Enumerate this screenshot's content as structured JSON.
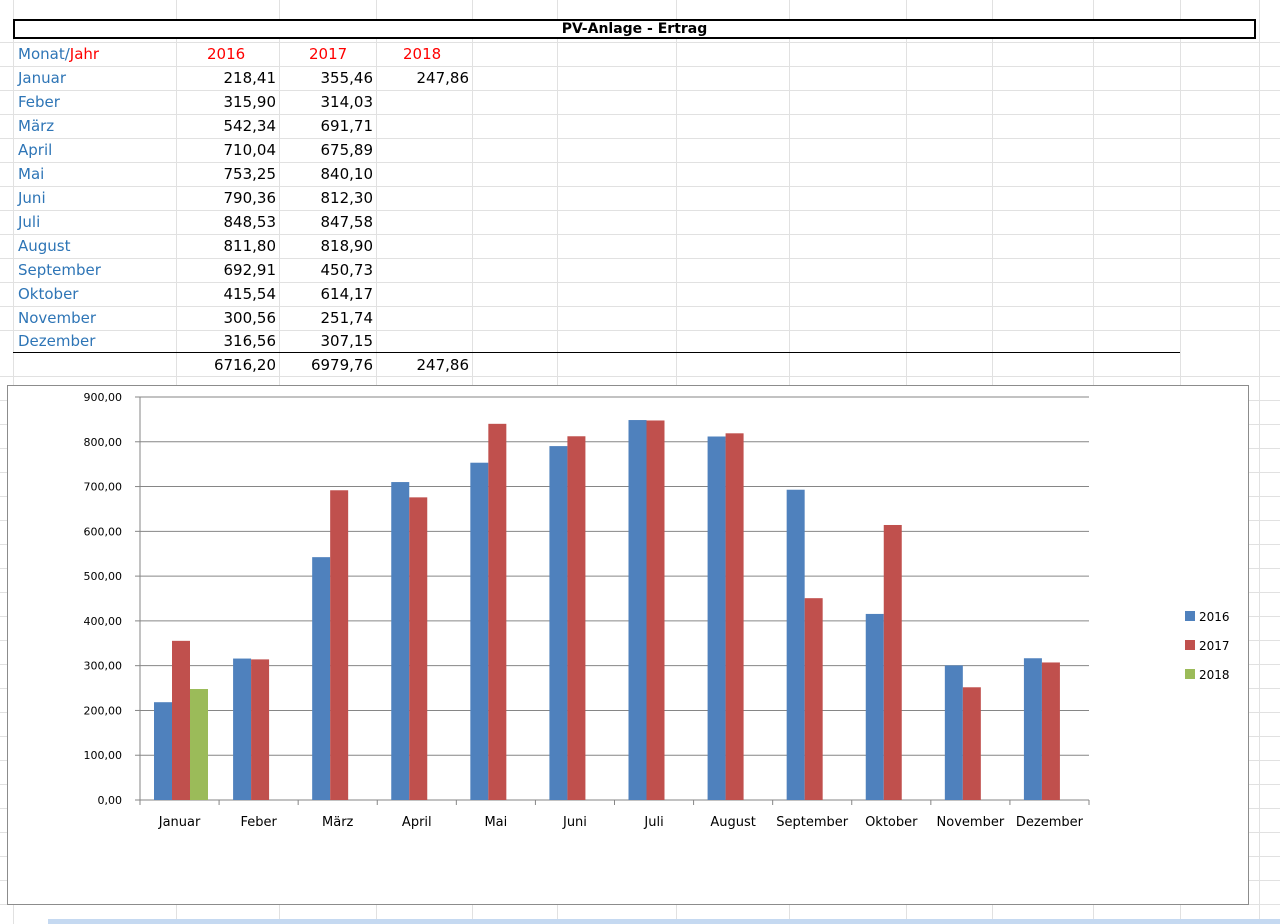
{
  "sheet": {
    "title": "PV-Anlage - Ertrag",
    "header": {
      "monat": "Monat",
      "sep": "/",
      "jahr": "Jahr",
      "years": [
        "2016",
        "2017",
        "2018"
      ]
    },
    "rows": [
      {
        "month": "Januar",
        "v2016": "218,41",
        "v2017": "355,46",
        "v2018": "247,86"
      },
      {
        "month": "Feber",
        "v2016": "315,90",
        "v2017": "314,03",
        "v2018": ""
      },
      {
        "month": "März",
        "v2016": "542,34",
        "v2017": "691,71",
        "v2018": ""
      },
      {
        "month": "April",
        "v2016": "710,04",
        "v2017": "675,89",
        "v2018": ""
      },
      {
        "month": "Mai",
        "v2016": "753,25",
        "v2017": "840,10",
        "v2018": ""
      },
      {
        "month": "Juni",
        "v2016": "790,36",
        "v2017": "812,30",
        "v2018": ""
      },
      {
        "month": "Juli",
        "v2016": "848,53",
        "v2017": "847,58",
        "v2018": ""
      },
      {
        "month": "August",
        "v2016": "811,80",
        "v2017": "818,90",
        "v2018": ""
      },
      {
        "month": "September",
        "v2016": "692,91",
        "v2017": "450,73",
        "v2018": ""
      },
      {
        "month": "Oktober",
        "v2016": "415,54",
        "v2017": "614,17",
        "v2018": ""
      },
      {
        "month": "November",
        "v2016": "300,56",
        "v2017": "251,74",
        "v2018": ""
      },
      {
        "month": "Dezember",
        "v2016": "316,56",
        "v2017": "307,15",
        "v2018": ""
      }
    ],
    "totals": {
      "t2016": "6716,20",
      "t2017": "6979,76",
      "t2018": "247,86"
    }
  },
  "chart_data": {
    "type": "bar",
    "categories": [
      "Januar",
      "Feber",
      "März",
      "April",
      "Mai",
      "Juni",
      "Juli",
      "August",
      "September",
      "Oktober",
      "November",
      "Dezember"
    ],
    "series": [
      {
        "name": "2016",
        "color": "#4f81bd",
        "values": [
          218.41,
          315.9,
          542.34,
          710.04,
          753.25,
          790.36,
          848.53,
          811.8,
          692.91,
          415.54,
          300.56,
          316.56
        ]
      },
      {
        "name": "2017",
        "color": "#c0504d",
        "values": [
          355.46,
          314.03,
          691.71,
          675.89,
          840.1,
          812.3,
          847.58,
          818.9,
          450.73,
          614.17,
          251.74,
          307.15
        ]
      },
      {
        "name": "2018",
        "color": "#9bbb59",
        "values": [
          247.86,
          null,
          null,
          null,
          null,
          null,
          null,
          null,
          null,
          null,
          null,
          null
        ]
      }
    ],
    "ylim": [
      0,
      900
    ],
    "yticks": [
      "0,00",
      "100,00",
      "200,00",
      "300,00",
      "400,00",
      "500,00",
      "600,00",
      "700,00",
      "800,00",
      "900,00"
    ],
    "grid": true,
    "legend_position": "right"
  }
}
